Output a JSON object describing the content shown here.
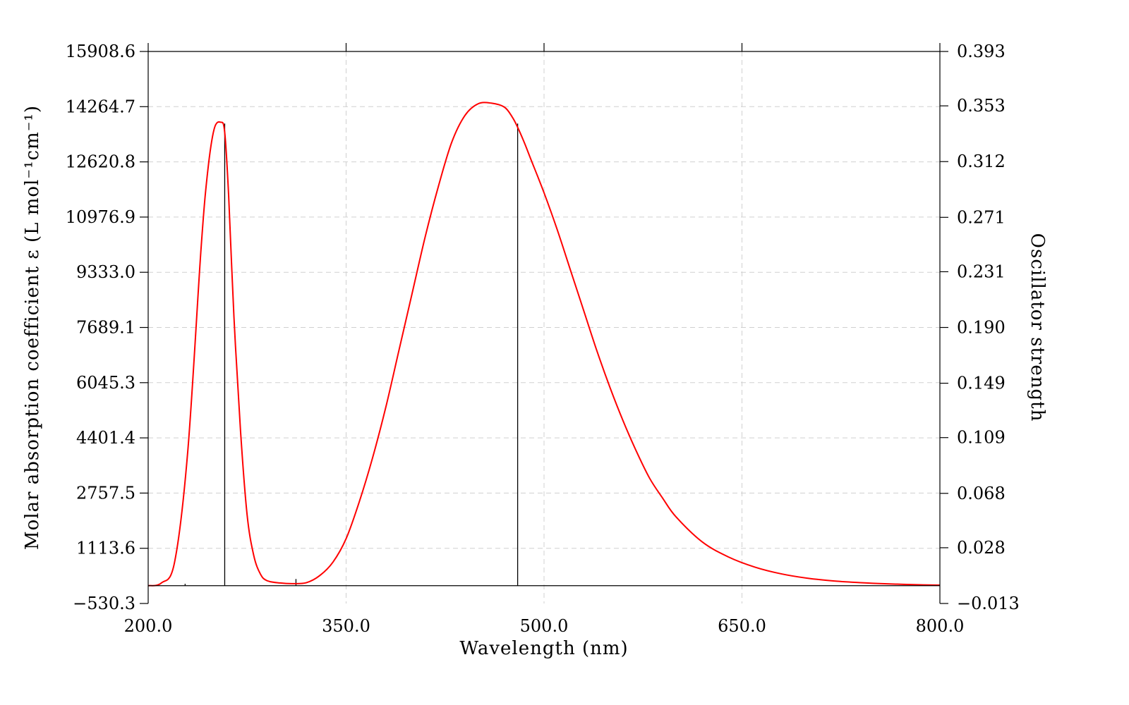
{
  "chart_data": {
    "type": "line",
    "xlabel": "Wavelength (nm)",
    "ylabel": "Molar absorption coefficient  ε (L mol⁻¹cm⁻¹)",
    "y2label": "Oscillator strength",
    "xlim": [
      200.0,
      800.0
    ],
    "ylim": [
      -530.3,
      15908.6
    ],
    "y2lim": [
      -0.013,
      0.393
    ],
    "x_ticks": [
      "200.0",
      "350.0",
      "500.0",
      "650.0",
      "800.0"
    ],
    "y_ticks": [
      "−530.3",
      "1113.6",
      "2757.5",
      "4401.4",
      "6045.3",
      "7689.1",
      "9333.0",
      "10976.9",
      "12620.8",
      "14264.7",
      "15908.6"
    ],
    "y2_ticks": [
      "−0.013",
      "0.028",
      "0.068",
      "0.109",
      "0.149",
      "0.190",
      "0.231",
      "0.271",
      "0.312",
      "0.353",
      "0.393"
    ],
    "grid": true,
    "series": [
      {
        "color": "#ff0000",
        "x": [
          200,
          210,
          220,
          230,
          240,
          245,
          250,
          255,
          258,
          261,
          265,
          270,
          275,
          280,
          285,
          290,
          300,
          310,
          320,
          330,
          340,
          350,
          360,
          370,
          380,
          390,
          400,
          410,
          420,
          430,
          440,
          450,
          460,
          470,
          476,
          480,
          485,
          490,
          500,
          510,
          520,
          530,
          540,
          550,
          560,
          570,
          580,
          590,
          600,
          620,
          640,
          660,
          680,
          700,
          720,
          740,
          760,
          780,
          800
        ],
        "y": [
          0,
          80,
          700,
          4000,
          10000,
          12300,
          13600,
          13800,
          13500,
          11600,
          8000,
          4600,
          2100,
          900,
          350,
          150,
          80,
          60,
          90,
          300,
          700,
          1400,
          2500,
          3800,
          5300,
          7000,
          8700,
          10400,
          11900,
          13200,
          14000,
          14350,
          14370,
          14250,
          13950,
          13650,
          13200,
          12700,
          11700,
          10600,
          9400,
          8200,
          7000,
          5900,
          4900,
          4000,
          3200,
          2600,
          2050,
          1300,
          850,
          550,
          350,
          220,
          140,
          90,
          55,
          30,
          15
        ]
      }
    ],
    "oscillator_sticks": [
      {
        "x": 228,
        "f": 0.0015
      },
      {
        "x": 258,
        "f": 0.34
      },
      {
        "x": 312,
        "f": 0.005
      },
      {
        "x": 480,
        "f": 0.34
      }
    ]
  }
}
